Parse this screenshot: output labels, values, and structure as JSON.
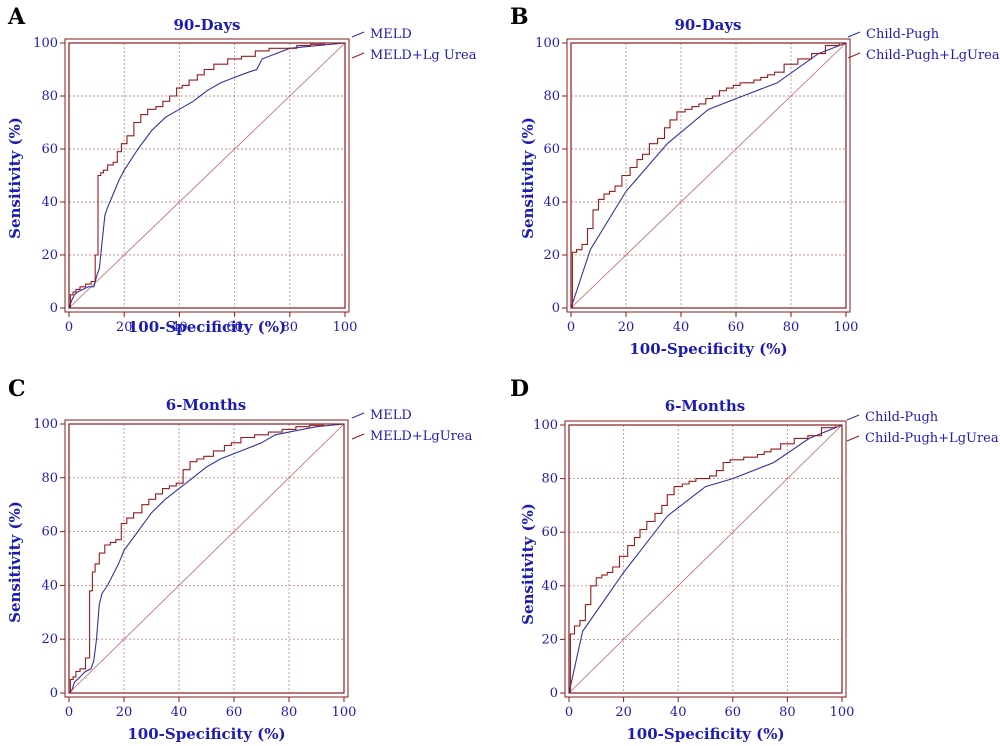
{
  "chart_data": [
    {
      "panel": "A",
      "type": "line",
      "title": "90-Days",
      "xlabel": "100-Specificity (%)",
      "ylabel": "Sensitivity (%)",
      "xlim": [
        0,
        100
      ],
      "ylim": [
        0,
        100
      ],
      "xticks": [
        0,
        20,
        40,
        60,
        80,
        100
      ],
      "yticks": [
        0,
        20,
        40,
        60,
        80,
        100
      ],
      "grid": true,
      "legend_position": "top-right",
      "series": [
        {
          "name": "MELD",
          "color": "#3232a0",
          "x": [
            0,
            1,
            2,
            3,
            5,
            7,
            9,
            10,
            11,
            12,
            13,
            14,
            16,
            18,
            20,
            25,
            30,
            35,
            40,
            45,
            50,
            55,
            60,
            65,
            68,
            70,
            75,
            80,
            90,
            100
          ],
          "y": [
            0,
            3,
            5,
            6,
            7,
            8,
            8,
            12,
            15,
            25,
            35,
            38,
            43,
            48,
            52,
            60,
            67,
            72,
            75,
            78,
            82,
            85,
            87,
            89,
            90,
            94,
            96,
            98,
            99,
            100
          ]
        },
        {
          "name": "MELD+Lg Urea",
          "color": "#9b1a1a",
          "x": [
            0,
            1,
            2,
            3,
            5,
            7,
            9,
            10,
            11,
            12,
            13,
            15,
            17,
            18,
            20,
            22,
            25,
            27,
            30,
            33,
            35,
            38,
            40,
            42,
            45,
            48,
            50,
            55,
            60,
            65,
            70,
            75,
            80,
            85,
            90,
            95,
            100
          ],
          "y": [
            0,
            5,
            6,
            7,
            8,
            9,
            10,
            20,
            50,
            51,
            52,
            54,
            55,
            59,
            62,
            65,
            70,
            73,
            75,
            76,
            78,
            80,
            83,
            84,
            86,
            88,
            90,
            92,
            94,
            95,
            97,
            98,
            98,
            99,
            99.5,
            100,
            100
          ]
        }
      ]
    },
    {
      "panel": "B",
      "type": "line",
      "title": "90-Days",
      "xlabel": "100-Specificity (%)",
      "ylabel": "Sensitivity (%)",
      "xlim": [
        0,
        100
      ],
      "ylim": [
        0,
        100
      ],
      "xticks": [
        0,
        20,
        40,
        60,
        80,
        100
      ],
      "yticks": [
        0,
        20,
        40,
        60,
        80,
        100
      ],
      "grid": true,
      "legend_position": "top-right",
      "series": [
        {
          "name": "Child-Pugh",
          "color": "#3232a0",
          "x": [
            0,
            7,
            20,
            35,
            50,
            60,
            75,
            90,
            100
          ],
          "y": [
            0,
            22,
            44,
            62,
            75,
            79,
            85,
            96,
            100
          ]
        },
        {
          "name": "Child-Pugh+LgUrea",
          "color": "#9b1a1a",
          "x": [
            0,
            1,
            3,
            5,
            7,
            9,
            11,
            13,
            15,
            17,
            20,
            23,
            25,
            27,
            30,
            33,
            35,
            37,
            40,
            43,
            45,
            48,
            50,
            53,
            55,
            58,
            60,
            63,
            65,
            68,
            70,
            73,
            75,
            80,
            85,
            90,
            95,
            100
          ],
          "y": [
            0,
            21,
            22,
            24,
            30,
            37,
            41,
            43,
            44,
            46,
            50,
            53,
            56,
            58,
            62,
            64,
            68,
            71,
            74,
            75,
            76,
            77,
            79,
            80,
            82,
            83,
            84,
            85,
            85,
            86,
            87,
            88,
            89,
            92,
            94,
            96,
            99,
            100
          ]
        }
      ]
    },
    {
      "panel": "C",
      "type": "line",
      "title": "6-Months",
      "xlabel": "100-Specificity (%)",
      "ylabel": "Sensitivity (%)",
      "xlim": [
        0,
        100
      ],
      "ylim": [
        0,
        100
      ],
      "xticks": [
        0,
        20,
        40,
        60,
        80,
        100
      ],
      "yticks": [
        0,
        20,
        40,
        60,
        80,
        100
      ],
      "grid": true,
      "legend_position": "top-right",
      "series": [
        {
          "name": "MELD",
          "color": "#3232a0",
          "x": [
            0,
            1,
            2,
            4,
            6,
            8,
            9,
            10,
            11,
            12,
            14,
            16,
            18,
            20,
            25,
            30,
            35,
            40,
            45,
            50,
            55,
            60,
            65,
            70,
            75,
            80,
            90,
            100
          ],
          "y": [
            0,
            1,
            4,
            6,
            8,
            9,
            12,
            20,
            33,
            37,
            40,
            44,
            48,
            53,
            60,
            67,
            72,
            76,
            80,
            84,
            87,
            89,
            91,
            93,
            96,
            97,
            99,
            100
          ]
        },
        {
          "name": "MELD+LgUrea",
          "color": "#9b1a1a",
          "x": [
            0,
            1,
            2,
            3,
            5,
            7,
            8,
            9,
            10,
            12,
            14,
            16,
            18,
            20,
            22,
            25,
            28,
            30,
            33,
            35,
            38,
            40,
            43,
            45,
            48,
            50,
            55,
            58,
            60,
            65,
            70,
            75,
            80,
            85,
            90,
            95,
            100
          ],
          "y": [
            0,
            5,
            6,
            8,
            9,
            13,
            38,
            45,
            48,
            52,
            55,
            56,
            57,
            63,
            65,
            67,
            70,
            72,
            74,
            76,
            77,
            78,
            83,
            86,
            87,
            88,
            90,
            92,
            93,
            95,
            96,
            97,
            98,
            99,
            99.5,
            100,
            100
          ]
        }
      ]
    },
    {
      "panel": "D",
      "type": "line",
      "title": "6-Months",
      "xlabel": "100-Specificity (%)",
      "ylabel": "Sensitivity (%)",
      "xlim": [
        0,
        100
      ],
      "ylim": [
        0,
        100
      ],
      "xticks": [
        0,
        20,
        40,
        60,
        80,
        100
      ],
      "yticks": [
        0,
        20,
        40,
        60,
        80,
        100
      ],
      "grid": true,
      "legend_position": "top-right",
      "series": [
        {
          "name": "Child-Pugh",
          "color": "#3232a0",
          "x": [
            0,
            5,
            20,
            36,
            50,
            60,
            75,
            88,
            100
          ],
          "y": [
            0,
            23,
            45,
            66,
            77,
            80,
            86,
            95,
            100
          ]
        },
        {
          "name": "Child-Pugh+LgUrea",
          "color": "#9b1a1a",
          "x": [
            0,
            1,
            3,
            5,
            7,
            9,
            11,
            13,
            15,
            17,
            20,
            23,
            25,
            27,
            30,
            33,
            35,
            37,
            40,
            43,
            45,
            48,
            50,
            53,
            55,
            58,
            60,
            63,
            65,
            68,
            70,
            73,
            75,
            80,
            85,
            90,
            95,
            100
          ],
          "y": [
            0,
            22,
            25,
            27,
            33,
            40,
            43,
            44,
            45,
            47,
            51,
            55,
            58,
            61,
            64,
            67,
            70,
            74,
            77,
            78,
            79,
            80,
            80,
            81,
            83,
            86,
            87,
            87,
            88,
            88,
            89,
            90,
            91,
            93,
            95,
            96,
            99,
            100
          ]
        }
      ]
    }
  ]
}
